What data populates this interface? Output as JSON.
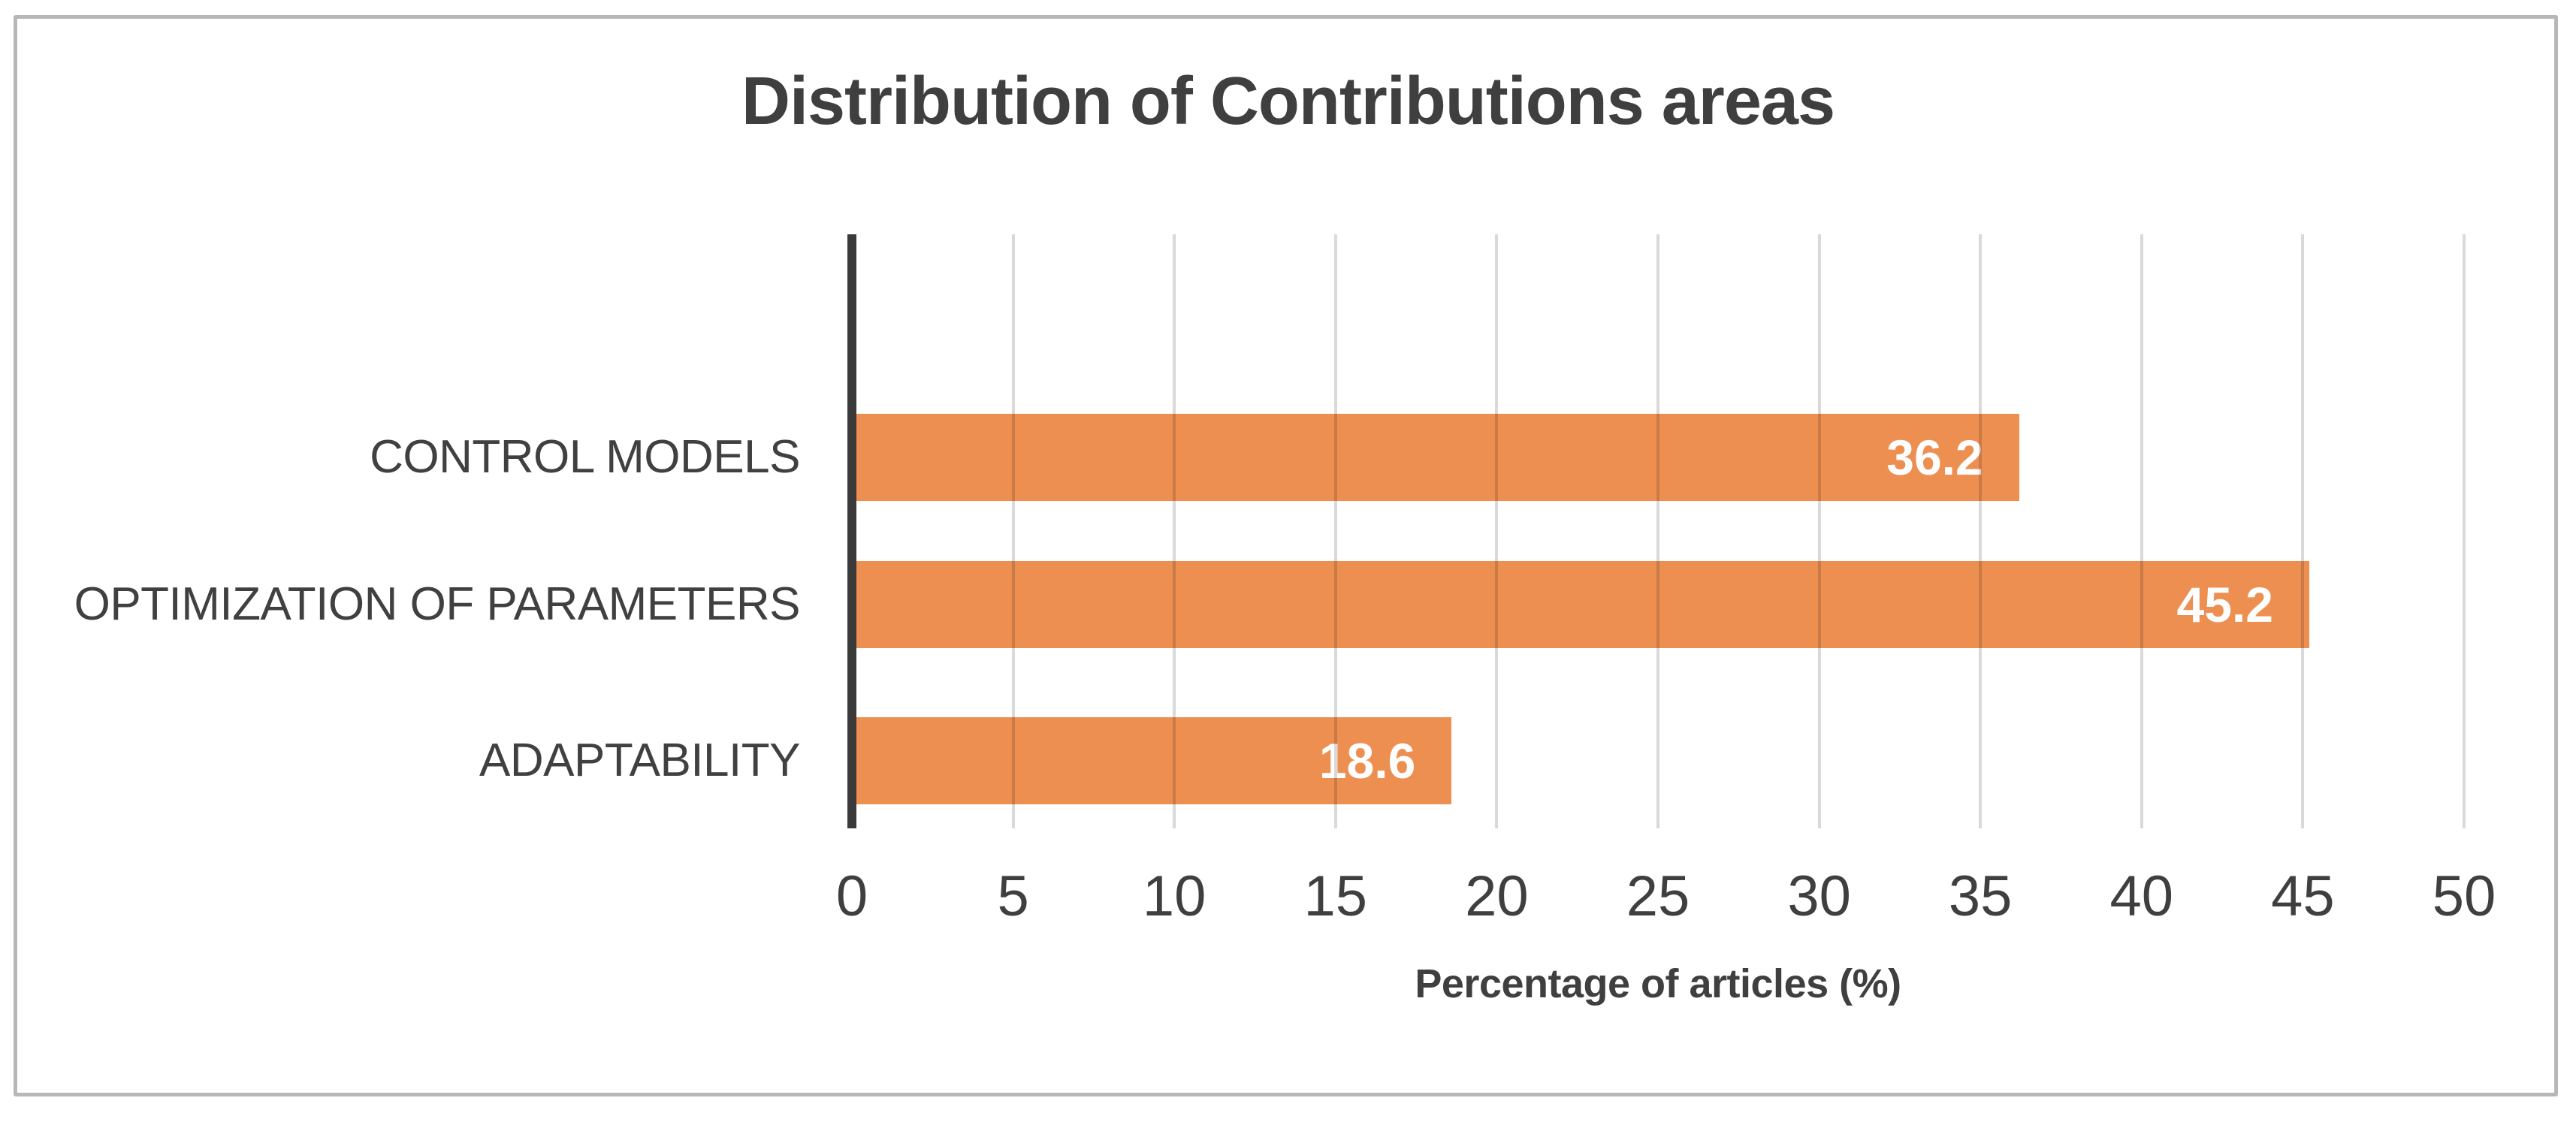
{
  "chart_data": {
    "type": "bar",
    "orientation": "horizontal",
    "title": "Distribution of Contributions areas",
    "categories": [
      "CONTROL MODELS",
      "OPTIMIZATION OF PARAMETERS",
      "ADAPTABILITY"
    ],
    "values": [
      36.2,
      45.2,
      18.6
    ],
    "value_labels": [
      "36.2",
      "45.2",
      "18.6"
    ],
    "xlabel": "Percentage of articles (%)",
    "ylabel": "",
    "xlim": [
      0,
      50
    ],
    "x_ticks": [
      "0",
      "5",
      "10",
      "15",
      "20",
      "25",
      "30",
      "35",
      "40",
      "45",
      "50"
    ],
    "grid": true,
    "legend": false,
    "colors": {
      "bar": "#ee8f52",
      "bar_value_label": "#ffffff",
      "gridline": "#d9d9d9",
      "category_axis_line": "#3a3a3a",
      "text": "#3f3f3f",
      "frame_border": "#b7b7b7",
      "background": "#ffffff"
    }
  }
}
